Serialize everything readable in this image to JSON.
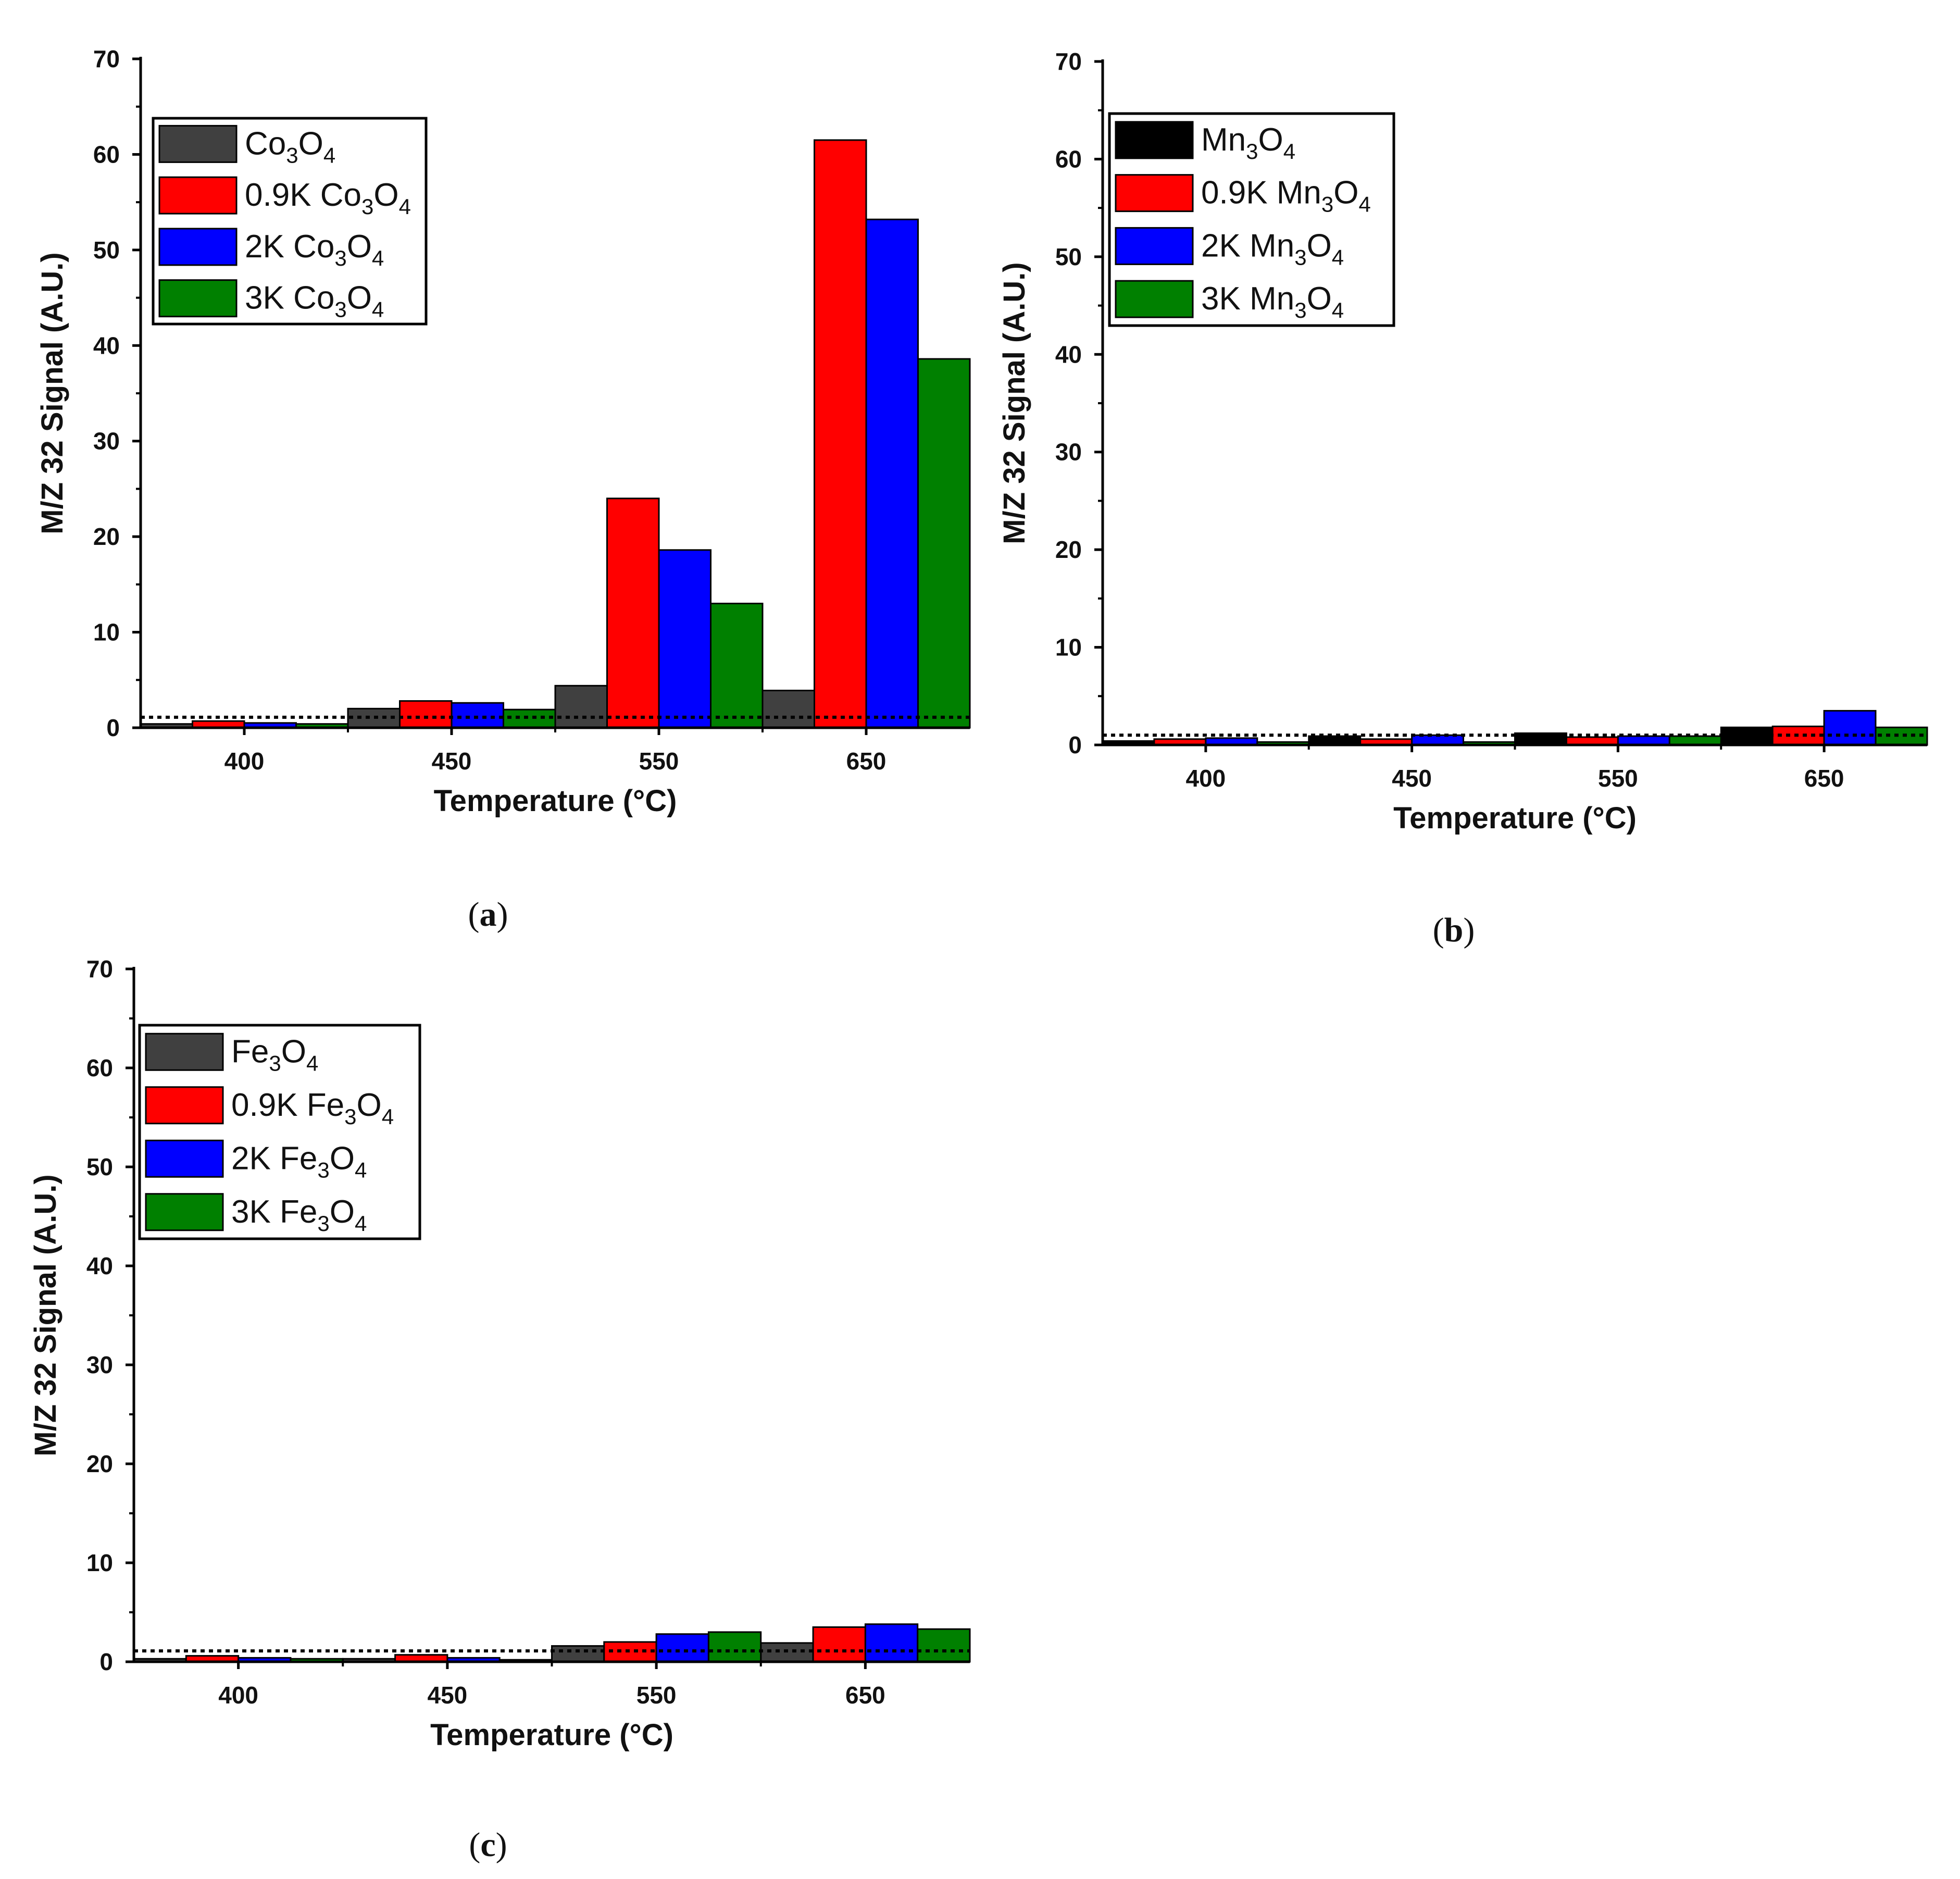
{
  "chart_data": [
    {
      "id": "a",
      "type": "bar",
      "panel_label": "a",
      "categories": [
        "400",
        "450",
        "550",
        "650"
      ],
      "series": [
        {
          "name": "Co3O4",
          "label": {
            "pre": "Co",
            "s1": "3",
            "mid": "O",
            "s2": "4"
          },
          "color": "#404040",
          "values": [
            0.4,
            2.0,
            4.4,
            3.9
          ]
        },
        {
          "name": "0.9K Co3O4",
          "label": {
            "pre": "0.9K Co",
            "s1": "3",
            "mid": "O",
            "s2": "4"
          },
          "color": "#ff0000",
          "values": [
            0.7,
            2.8,
            24.0,
            61.5
          ]
        },
        {
          "name": "2K Co3O4",
          "label": {
            "pre": "2K Co",
            "s1": "3",
            "mid": "O",
            "s2": "4"
          },
          "color": "#0000ff",
          "values": [
            0.5,
            2.6,
            18.6,
            53.2
          ]
        },
        {
          "name": "3K Co3O4",
          "label": {
            "pre": "3K Co",
            "s1": "3",
            "mid": "O",
            "s2": "4"
          },
          "color": "#008000",
          "values": [
            0.4,
            1.9,
            13.0,
            38.6
          ]
        }
      ],
      "reference_line": 1.1,
      "xlabel": "Temperature (°C)",
      "ylabel": "M/Z 32 Signal (A.U.)",
      "ylim": [
        0,
        70
      ],
      "yticks": [
        "0",
        "10",
        "20",
        "30",
        "40",
        "50",
        "60",
        "70"
      ],
      "legend_position": "top-left",
      "grid": false
    },
    {
      "id": "b",
      "type": "bar",
      "panel_label": "b",
      "categories": [
        "400",
        "450",
        "550",
        "650"
      ],
      "series": [
        {
          "name": "Mn3O4",
          "label": {
            "pre": "Mn",
            "s1": "3",
            "mid": "O",
            "s2": "4"
          },
          "color": "#000000",
          "values": [
            0.4,
            0.9,
            1.2,
            1.8
          ]
        },
        {
          "name": "0.9K Mn3O4",
          "label": {
            "pre": "0.9K Mn",
            "s1": "3",
            "mid": "O",
            "s2": "4"
          },
          "color": "#ff0000",
          "values": [
            0.6,
            0.6,
            0.8,
            1.9
          ]
        },
        {
          "name": "2K Mn3O4",
          "label": {
            "pre": "2K Mn",
            "s1": "3",
            "mid": "O",
            "s2": "4"
          },
          "color": "#0000ff",
          "values": [
            0.7,
            1.0,
            0.9,
            3.5
          ]
        },
        {
          "name": "3K Mn3O4",
          "label": {
            "pre": "3K Mn",
            "s1": "3",
            "mid": "O",
            "s2": "4"
          },
          "color": "#008000",
          "values": [
            0.3,
            0.3,
            0.9,
            1.8
          ]
        }
      ],
      "reference_line": 1.0,
      "xlabel": "Temperature (°C)",
      "ylabel": "M/Z 32 Signal (A.U.)",
      "ylim": [
        0,
        70
      ],
      "yticks": [
        "0",
        "10",
        "20",
        "30",
        "40",
        "50",
        "60",
        "70"
      ],
      "legend_position": "top-left",
      "grid": false
    },
    {
      "id": "c",
      "type": "bar",
      "panel_label": "c",
      "categories": [
        "400",
        "450",
        "550",
        "650"
      ],
      "series": [
        {
          "name": "Fe3O4",
          "label": {
            "pre": "Fe",
            "s1": "3",
            "mid": "O",
            "s2": "4"
          },
          "color": "#404040",
          "values": [
            0.3,
            0.3,
            1.6,
            1.9
          ]
        },
        {
          "name": "0.9K Fe3O4",
          "label": {
            "pre": "0.9K Fe",
            "s1": "3",
            "mid": "O",
            "s2": "4"
          },
          "color": "#ff0000",
          "values": [
            0.6,
            0.7,
            2.0,
            3.5
          ]
        },
        {
          "name": "2K Fe3O4",
          "label": {
            "pre": "2K Fe",
            "s1": "3",
            "mid": "O",
            "s2": "4"
          },
          "color": "#0000ff",
          "values": [
            0.4,
            0.4,
            2.8,
            3.8
          ]
        },
        {
          "name": "3K Fe3O4",
          "label": {
            "pre": "3K Fe",
            "s1": "3",
            "mid": "O",
            "s2": "4"
          },
          "color": "#008000",
          "values": [
            0.3,
            0.2,
            3.0,
            3.3
          ]
        }
      ],
      "reference_line": 1.1,
      "xlabel": "Temperature (°C)",
      "ylabel": "M/Z 32 Signal (A.U.)",
      "ylim": [
        0,
        70
      ],
      "yticks": [
        "0",
        "10",
        "20",
        "30",
        "40",
        "50",
        "60",
        "70"
      ],
      "legend_position": "top-left",
      "grid": false
    }
  ]
}
